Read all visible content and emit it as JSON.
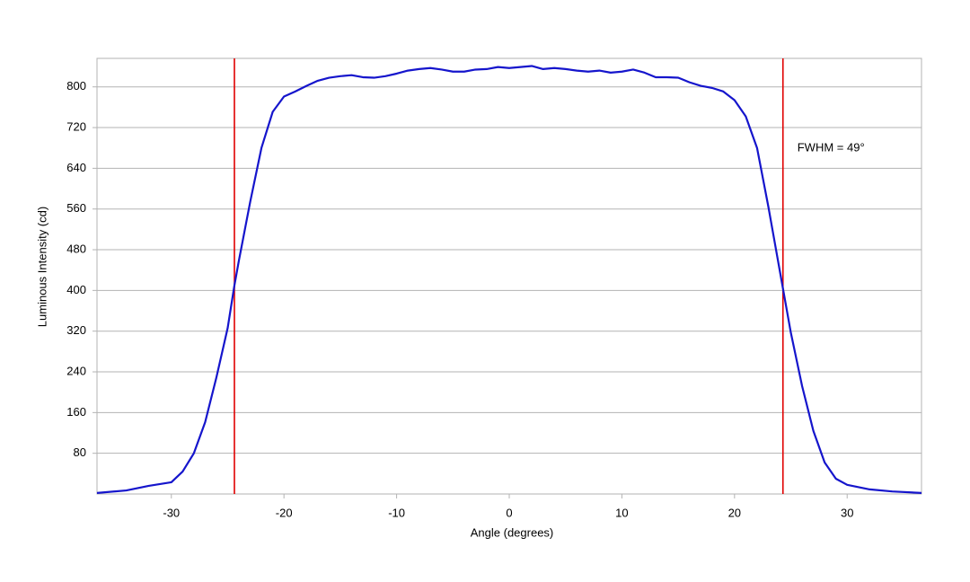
{
  "chart_data": {
    "type": "line",
    "x_label": "Angle (degrees)",
    "y_label": "Luminous Intensity (cd)",
    "annotation": "FWHM = 49°",
    "x": [
      -36.6,
      -34,
      -32,
      -30,
      -29,
      -28,
      -27,
      -26,
      -25,
      -24.4,
      -24,
      -23,
      -22,
      -21,
      -20,
      -19,
      -18,
      -17,
      -16,
      -15,
      -14,
      -13,
      -12,
      -11,
      -10,
      -9,
      -8,
      -7,
      -6,
      -5,
      -4,
      -3,
      -2,
      -1,
      0,
      1,
      2,
      3,
      4,
      5,
      6,
      7,
      8,
      9,
      10,
      11,
      12,
      13,
      14,
      15,
      16,
      17,
      18,
      19,
      20,
      21,
      22,
      23,
      24,
      25,
      26,
      27,
      28,
      29,
      30,
      32,
      34,
      36.6
    ],
    "series": [
      {
        "color": "#1515cc",
        "values": [
          2,
          7,
          16,
          23,
          44,
          80,
          141,
          229,
          326,
          410,
          459,
          574,
          680,
          751,
          781,
          791,
          802,
          812,
          818,
          821,
          823,
          819,
          818,
          821,
          826,
          832,
          835,
          837,
          834,
          830,
          830,
          834,
          835,
          839,
          837,
          839,
          841,
          835,
          837,
          835,
          832,
          830,
          832,
          828,
          830,
          834,
          828,
          819,
          819,
          818,
          809,
          802,
          798,
          791,
          774,
          742,
          680,
          565,
          441,
          317,
          212,
          124,
          62,
          30,
          18,
          9,
          5,
          2
        ]
      }
    ],
    "vlines": [
      -24.4,
      24.3
    ],
    "vline_color": "#e00000",
    "xlim": [
      -36.6,
      36.6
    ],
    "ylim": [
      0,
      856
    ],
    "xticks": [
      -30,
      -20,
      -10,
      0,
      10,
      20,
      30
    ],
    "yticks": [
      80,
      160,
      240,
      320,
      400,
      480,
      560,
      640,
      720,
      800
    ],
    "grid": true
  }
}
